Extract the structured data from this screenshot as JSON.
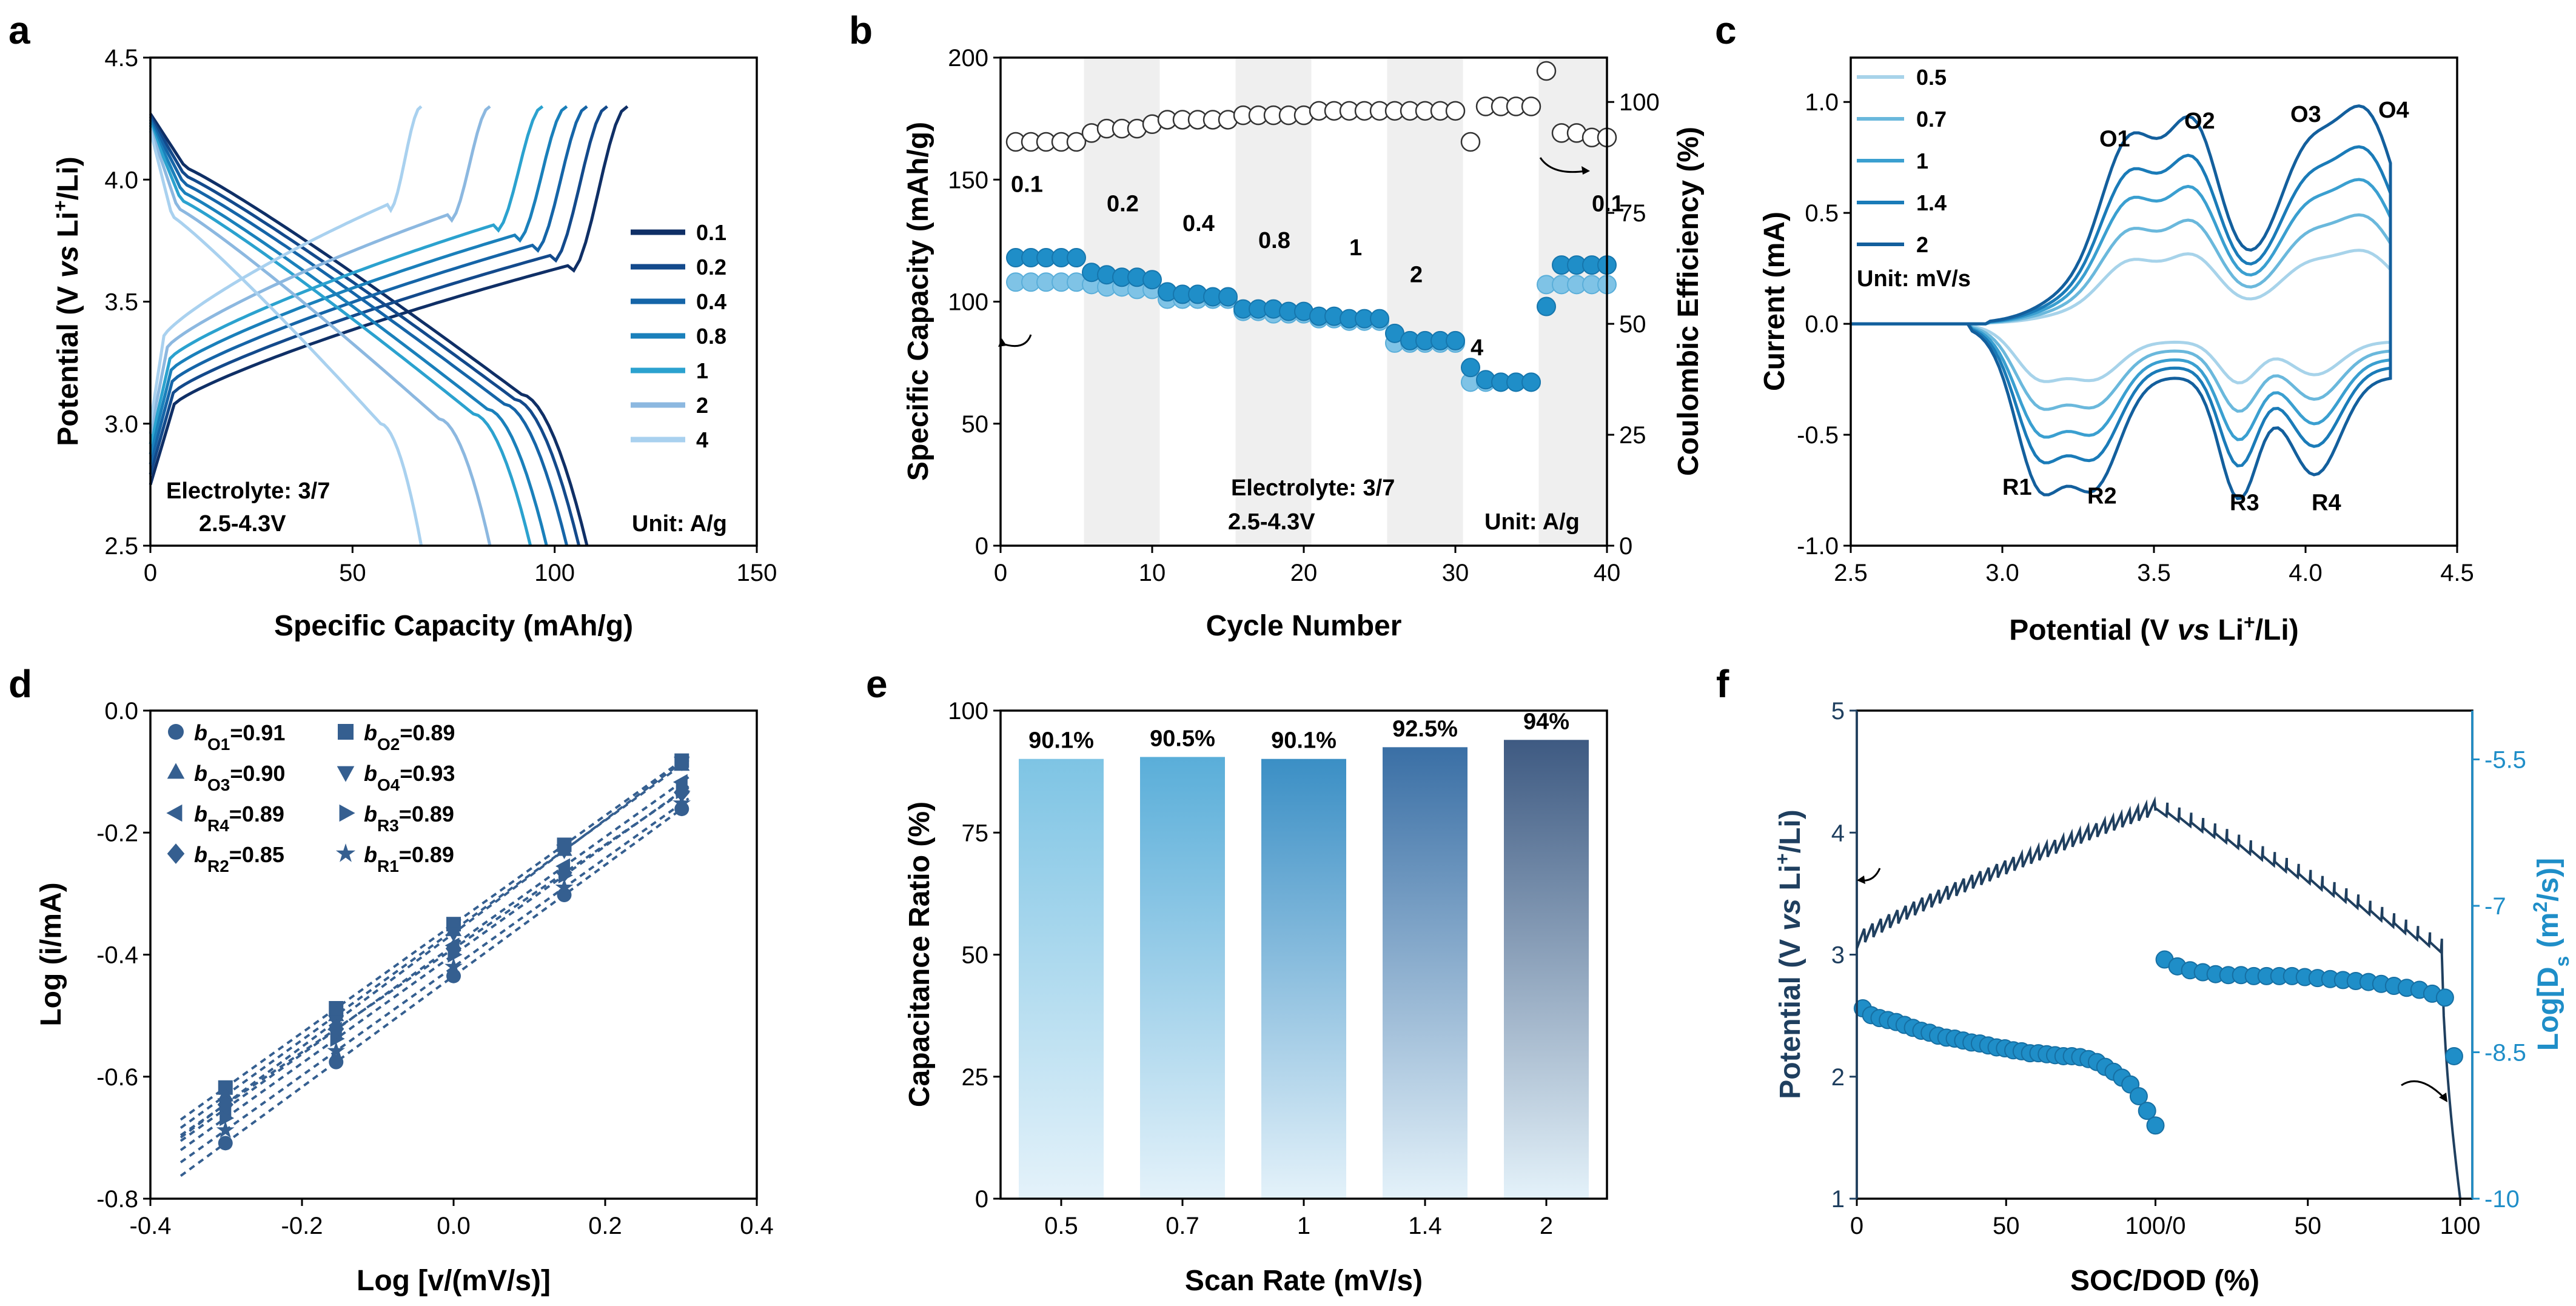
{
  "colors": {
    "rate": [
      "#0f2f66",
      "#134a8c",
      "#1565a8",
      "#1a80bb",
      "#2ba2cf",
      "#8cb8e0",
      "#a9d1ef"
    ],
    "cv": [
      "#a7d3ea",
      "#6ab8dc",
      "#3a9fd0",
      "#1a7bb8",
      "#135f9d"
    ],
    "dark": "#1f3f5f",
    "teal": "#1f8ec8",
    "fit": "#355f90",
    "bar_top": [
      "#7ec4e4",
      "#5aaed9",
      "#3b8fc5",
      "#3a6fa5",
      "#3e5a82"
    ],
    "bar_bottom": "#e4f2fa",
    "shade": "#efefef"
  },
  "panels": {
    "a": {
      "label": "a"
    },
    "b": {
      "label": "b"
    },
    "c": {
      "label": "c"
    },
    "d": {
      "label": "d"
    },
    "e": {
      "label": "e"
    },
    "f": {
      "label": "f"
    }
  },
  "chart_data": [
    {
      "panel": "a",
      "type": "line",
      "xlabel": "Specific Capacity (mAh/g)",
      "ylabel_parts": [
        "Potential (V ",
        "vs",
        " Li",
        "+",
        "/Li)"
      ],
      "xlim": [
        0,
        150
      ],
      "ylim": [
        2.5,
        4.5
      ],
      "xticks": [
        "0",
        "50",
        "100",
        "150"
      ],
      "yticks": [
        "2.5",
        "3.0",
        "3.5",
        "4.0",
        "4.5"
      ],
      "legend": [
        "0.1",
        "0.2",
        "0.4",
        "0.8",
        "1",
        "2",
        "4"
      ],
      "annotations": [
        "Electrolyte: 3/7",
        "2.5-4.3V",
        "Unit: A/g"
      ],
      "series": [
        {
          "name": "0.1",
          "charge_capacity": 118,
          "discharge_capacity": 108
        },
        {
          "name": "0.2",
          "charge_capacity": 113,
          "discharge_capacity": 106
        },
        {
          "name": "0.4",
          "charge_capacity": 108,
          "discharge_capacity": 103
        },
        {
          "name": "0.8",
          "charge_capacity": 103,
          "discharge_capacity": 98
        },
        {
          "name": "1",
          "charge_capacity": 97,
          "discharge_capacity": 94
        },
        {
          "name": "2",
          "charge_capacity": 84,
          "discharge_capacity": 84
        },
        {
          "name": "4",
          "charge_capacity": 67,
          "discharge_capacity": 67
        }
      ]
    },
    {
      "panel": "b",
      "type": "scatter",
      "xlabel": "Cycle Number",
      "ylabel": "Specific Capacity (mAh/g)",
      "y2label": "Coulombic Efficiency (%)",
      "xlim": [
        0,
        40
      ],
      "ylim": [
        0,
        200
      ],
      "y2lim": [
        0,
        110
      ],
      "xticks": [
        "0",
        "10",
        "20",
        "30",
        "40"
      ],
      "yticks": [
        "0",
        "50",
        "100",
        "150",
        "200"
      ],
      "y2ticks": [
        "0",
        "25",
        "50",
        "75",
        "100"
      ],
      "rate_labels": [
        "0.1",
        "0.2",
        "0.4",
        "0.8",
        "1",
        "2",
        "4",
        "0.1"
      ],
      "annotations": [
        "Electrolyte: 3/7",
        "2.5-4.3V",
        "Unit: A/g"
      ],
      "charge": [
        118,
        118,
        118,
        118,
        118,
        112,
        111,
        110,
        110,
        109,
        104,
        103,
        103,
        102,
        102,
        97,
        97,
        97,
        96,
        96,
        94,
        94,
        93,
        93,
        93,
        87,
        84,
        84,
        84,
        84,
        73,
        68,
        67,
        67,
        67,
        98,
        115,
        115,
        115,
        115
      ],
      "discharge": [
        108,
        108,
        108,
        108,
        108,
        107,
        106,
        106,
        105,
        105,
        101,
        101,
        101,
        101,
        101,
        96,
        96,
        95,
        95,
        95,
        93,
        93,
        92,
        92,
        92,
        83,
        83,
        83,
        83,
        83,
        67,
        67,
        67,
        67,
        67,
        107,
        107,
        107,
        107,
        107
      ],
      "efficiency": [
        91,
        91,
        91,
        91,
        91,
        93,
        94,
        94,
        94,
        95,
        96,
        96,
        96,
        96,
        96,
        97,
        97,
        97,
        97,
        97,
        98,
        98,
        98,
        98,
        98,
        98,
        98,
        98,
        98,
        98,
        91,
        99,
        99,
        99,
        99,
        107,
        93,
        93,
        92,
        92
      ]
    },
    {
      "panel": "c",
      "type": "line",
      "xlabel_parts": [
        "Potential (V ",
        "vs",
        " Li",
        "+",
        "/Li)"
      ],
      "ylabel": "Current (mA)",
      "xlim": [
        2.5,
        4.5
      ],
      "ylim": [
        -1.0,
        1.2
      ],
      "xticks": [
        "2.5",
        "3.0",
        "3.5",
        "4.0",
        "4.5"
      ],
      "yticks": [
        "-1.0",
        "-0.5",
        "0.0",
        "0.5",
        "1.0"
      ],
      "legend": [
        "0.5",
        "0.7",
        "1",
        "1.4",
        "2"
      ],
      "legend_unit": "Unit: mV/s",
      "peak_labels": [
        "O1",
        "O2",
        "O3",
        "O4",
        "R1",
        "R2",
        "R3",
        "R4"
      ],
      "scales": [
        0.27,
        0.4,
        0.53,
        0.65,
        0.8
      ]
    },
    {
      "panel": "d",
      "type": "scatter",
      "xlabel": "Log [v/(mV/s)]",
      "ylabel": "Log (i/mA)",
      "xlim": [
        -0.4,
        0.4
      ],
      "ylim": [
        -0.8,
        0.0
      ],
      "xticks": [
        "-0.4",
        "-0.2",
        "0.0",
        "0.2",
        "0.4"
      ],
      "yticks": [
        "-0.8",
        "-0.6",
        "-0.4",
        "-0.2",
        "0.0"
      ],
      "x": [
        -0.301,
        -0.155,
        0.0,
        0.146,
        0.301
      ],
      "series": [
        {
          "name": "O1",
          "b": "0.91",
          "marker": "circle",
          "intercept": -0.435
        },
        {
          "name": "O2",
          "b": "0.89",
          "marker": "square",
          "intercept": -0.35
        },
        {
          "name": "O3",
          "b": "0.90",
          "marker": "triangle-up",
          "intercept": -0.36
        },
        {
          "name": "O4",
          "b": "0.93",
          "marker": "triangle-down",
          "intercept": -0.365
        },
        {
          "name": "R4",
          "b": "0.89",
          "marker": "triangle-left",
          "intercept": -0.385
        },
        {
          "name": "R3",
          "b": "0.89",
          "marker": "triangle-right",
          "intercept": -0.4
        },
        {
          "name": "R2",
          "b": "0.85",
          "marker": "diamond",
          "intercept": -0.39
        },
        {
          "name": "R1",
          "b": "0.89",
          "marker": "star",
          "intercept": -0.42
        }
      ]
    },
    {
      "panel": "e",
      "type": "bar",
      "xlabel": "Scan Rate (mV/s)",
      "ylabel": "Capacitance Ratio (%)",
      "categories": [
        "0.5",
        "0.7",
        "1",
        "1.4",
        "2"
      ],
      "values": [
        90.1,
        90.5,
        90.1,
        92.5,
        94
      ],
      "labels": [
        "90.1%",
        "90.5%",
        "90.1%",
        "92.5%",
        "94%"
      ],
      "ylim": [
        0,
        100
      ],
      "yticks": [
        "0",
        "25",
        "50",
        "75",
        "100"
      ]
    },
    {
      "panel": "f",
      "type": "line",
      "xlabel": "SOC/DOD (%)",
      "ylabel_parts": [
        "Potential (V ",
        "vs",
        " Li",
        "+",
        "/Li)"
      ],
      "y2label_parts": [
        "Log[D",
        "s",
        " (m",
        "2",
        "/s)]"
      ],
      "xticks": [
        "0",
        "50",
        "100/0",
        "50",
        "100"
      ],
      "ylim": [
        1,
        5
      ],
      "yticks": [
        "1",
        "2",
        "3",
        "4",
        "5"
      ],
      "y2lim": [
        -10,
        -5
      ],
      "y2ticks": [
        "-10",
        "-8.5",
        "-7",
        "-5.5"
      ],
      "charge_logD": [
        -8.05,
        -8.12,
        -8.15,
        -8.17,
        -8.19,
        -8.22,
        -8.25,
        -8.28,
        -8.3,
        -8.33,
        -8.35,
        -8.36,
        -8.38,
        -8.4,
        -8.41,
        -8.43,
        -8.45,
        -8.46,
        -8.48,
        -8.49,
        -8.51,
        -8.51,
        -8.52,
        -8.53,
        -8.54,
        -8.54,
        -8.55,
        -8.57,
        -8.6,
        -8.65,
        -8.7,
        -8.76,
        -8.83,
        -8.95,
        -9.1,
        -9.25
      ],
      "discharge_logD": [
        -7.55,
        -7.62,
        -7.66,
        -7.68,
        -7.7,
        -7.71,
        -7.71,
        -7.72,
        -7.72,
        -7.72,
        -7.72,
        -7.73,
        -7.74,
        -7.75,
        -7.76,
        -7.77,
        -7.78,
        -7.8,
        -7.82,
        -7.84,
        -7.86,
        -7.9,
        -7.94,
        -8.54
      ]
    }
  ]
}
